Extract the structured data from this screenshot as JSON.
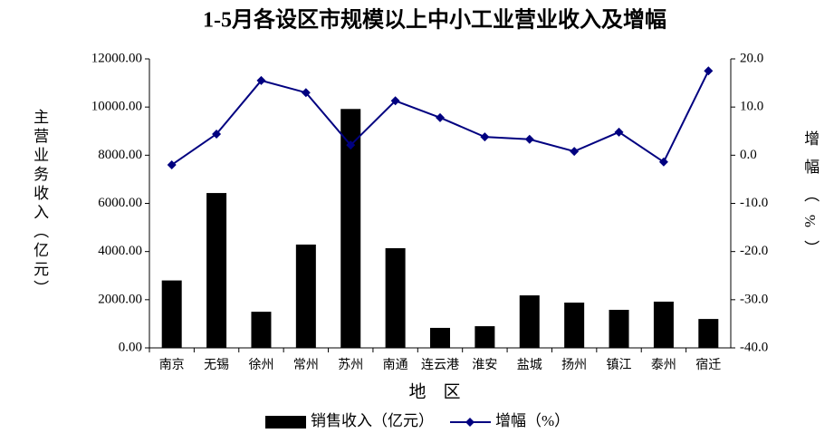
{
  "chart_data": {
    "type": "bar-line",
    "title": "1-5月各设区市规模以上中小工业营业收入及增幅",
    "categories": [
      "南京",
      "无锡",
      "徐州",
      "常州",
      "苏州",
      "南通",
      "连云港",
      "淮安",
      "盐城",
      "扬州",
      "镇江",
      "泰州",
      "宿迁"
    ],
    "series": [
      {
        "name": "销售收入（亿元）",
        "type": "bar",
        "color": "#000000",
        "values": [
          2800,
          6430,
          1500,
          4290,
          9920,
          4140,
          830,
          900,
          2180,
          1880,
          1580,
          1920,
          1200
        ]
      },
      {
        "name": "增幅（%）",
        "type": "line",
        "axis": "y2",
        "color": "#000080",
        "values": [
          -2.0,
          4.4,
          15.5,
          13.0,
          2.1,
          11.3,
          7.8,
          3.8,
          3.3,
          0.8,
          4.8,
          -1.4,
          17.5
        ]
      }
    ],
    "xlabel": "地　区",
    "ylabel": "主营业务收入（亿元）",
    "y2label": "增幅（%）",
    "ylim": [
      0,
      12000
    ],
    "yticks": [
      {
        "value": 0,
        "label": "0.00"
      },
      {
        "value": 2000,
        "label": "2000.00"
      },
      {
        "value": 4000,
        "label": "4000.00"
      },
      {
        "value": 6000,
        "label": "6000.00"
      },
      {
        "value": 8000,
        "label": "8000.00"
      },
      {
        "value": 10000,
        "label": "10000.00"
      },
      {
        "value": 12000,
        "label": "12000.00"
      }
    ],
    "y2lim": [
      -40,
      20
    ],
    "y2ticks": [
      {
        "value": -40,
        "label": "-40.0"
      },
      {
        "value": -30,
        "label": "-30.0"
      },
      {
        "value": -20,
        "label": "-20.0"
      },
      {
        "value": -10,
        "label": "-10.0"
      },
      {
        "value": 0,
        "label": "0.0"
      },
      {
        "value": 10,
        "label": "10.0"
      },
      {
        "value": 20,
        "label": "20.0"
      }
    ],
    "grid": false,
    "legend": "bottom"
  }
}
